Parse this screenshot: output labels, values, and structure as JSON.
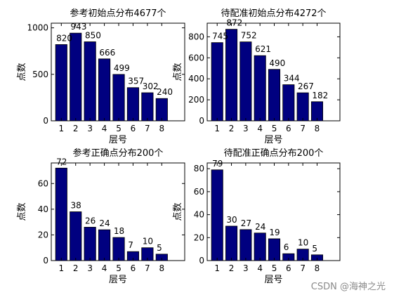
{
  "chart_data": [
    {
      "type": "bar",
      "title": "参考初始点分布4677个",
      "xlabel": "层号",
      "ylabel": "点数",
      "categories": [
        "1",
        "2",
        "3",
        "4",
        "5",
        "6",
        "7",
        "8"
      ],
      "values": [
        820,
        943,
        850,
        666,
        499,
        357,
        302,
        240
      ],
      "data_labels": [
        "820",
        "943",
        "850",
        "666",
        "499",
        "357",
        "302",
        "240"
      ],
      "xlim": [
        0.3,
        9.6
      ],
      "ylim": [
        0,
        1050
      ],
      "yticks": [
        0,
        500,
        1000
      ],
      "color": "#000080",
      "grid": false
    },
    {
      "type": "bar",
      "title": "待配准初始点分布4272个",
      "xlabel": "层号",
      "ylabel": "点数",
      "categories": [
        "1",
        "2",
        "3",
        "4",
        "5",
        "6",
        "7",
        "8"
      ],
      "values": [
        745,
        872,
        752,
        621,
        490,
        344,
        267,
        182
      ],
      "data_labels": [
        "745",
        "872",
        "752",
        "621",
        "490",
        "344",
        "267",
        "182"
      ],
      "xlim": [
        0.3,
        9.6
      ],
      "ylim": [
        0,
        930
      ],
      "yticks": [
        0,
        200,
        400,
        600,
        800
      ],
      "color": "#000080",
      "grid": false
    },
    {
      "type": "bar",
      "title": "参考正确点分布200个",
      "xlabel": "层号",
      "ylabel": "点数",
      "categories": [
        "1",
        "2",
        "3",
        "4",
        "5",
        "6",
        "7",
        "8"
      ],
      "values": [
        72,
        38,
        26,
        24,
        18,
        7,
        10,
        5
      ],
      "data_labels": [
        "72",
        "38",
        "26",
        "24",
        "18",
        "7",
        "10",
        "5"
      ],
      "xlim": [
        0.3,
        9.6
      ],
      "ylim": [
        0,
        76
      ],
      "yticks": [
        0,
        20,
        40,
        60
      ],
      "color": "#000080",
      "grid": false
    },
    {
      "type": "bar",
      "title": "待配准正确点分布200个",
      "xlabel": "层号",
      "ylabel": "点数",
      "categories": [
        "1",
        "2",
        "3",
        "4",
        "5",
        "6",
        "7",
        "8"
      ],
      "values": [
        79,
        30,
        27,
        24,
        19,
        6,
        10,
        5
      ],
      "data_labels": [
        "79",
        "30",
        "27",
        "24",
        "19",
        "6",
        "10",
        "5"
      ],
      "xlim": [
        0.3,
        9.6
      ],
      "ylim": [
        0,
        85
      ],
      "yticks": [
        0,
        20,
        40,
        60,
        80
      ],
      "color": "#000080",
      "grid": false
    }
  ],
  "watermark": "CSDN @海神之光"
}
